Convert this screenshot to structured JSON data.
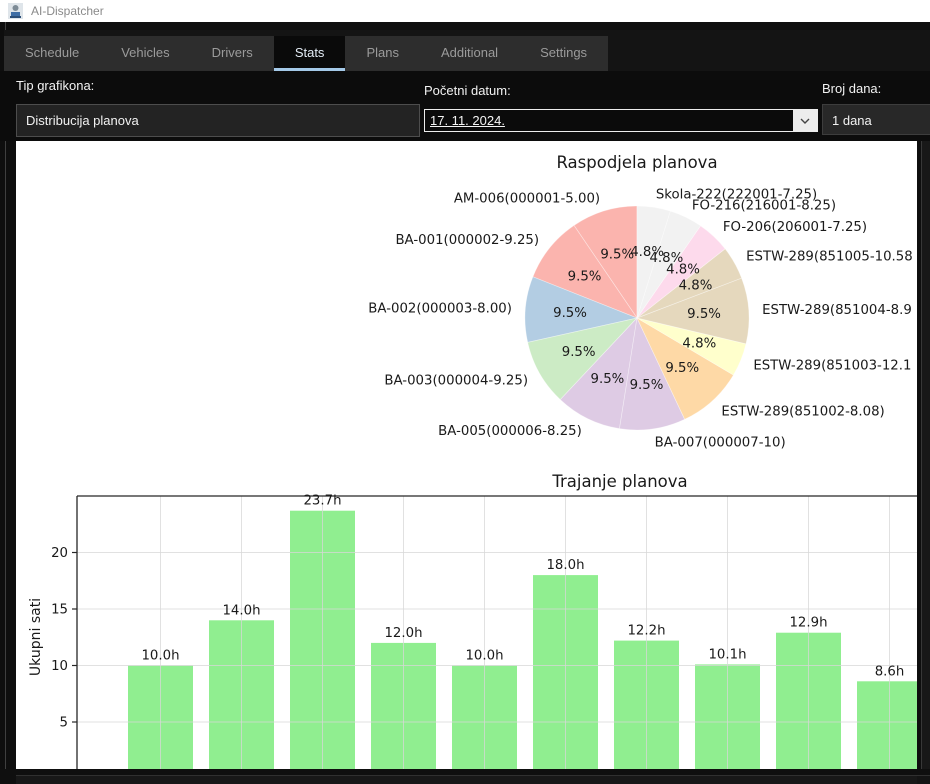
{
  "window": {
    "title": "AI-Dispatcher"
  },
  "tabs": [
    {
      "label": "Schedule",
      "active": false
    },
    {
      "label": "Vehicles",
      "active": false
    },
    {
      "label": "Drivers",
      "active": false
    },
    {
      "label": "Stats",
      "active": true
    },
    {
      "label": "Plans",
      "active": false
    },
    {
      "label": "Additional",
      "active": false
    },
    {
      "label": "Settings",
      "active": false
    }
  ],
  "filters": {
    "chart_type_label": "Tip grafikona:",
    "chart_type_value": "Distribucija planova",
    "start_date_label": "Početni datum:",
    "start_date_value": "17. 11. 2024.",
    "days_label": "Broj dana:",
    "days_value": "1 dana"
  },
  "icons": {
    "date_chevron": "chevron-down-icon"
  },
  "chart_data": [
    {
      "type": "pie",
      "title": "Raspodjela planova",
      "start_angle": 90,
      "direction": "counterclockwise",
      "slices": [
        {
          "label": "AM-006(000001-5.00)",
          "pct": 9.5,
          "pct_label": "9.5%",
          "color": "#fbb4ae"
        },
        {
          "label": "BA-001(000002-9.25)",
          "pct": 9.5,
          "pct_label": "9.5%",
          "color": "#fbb4ae"
        },
        {
          "label": "BA-002(000003-8.00)",
          "pct": 9.5,
          "pct_label": "9.5%",
          "color": "#b3cde3"
        },
        {
          "label": "BA-003(000004-9.25)",
          "pct": 9.5,
          "pct_label": "9.5%",
          "color": "#ccebc5"
        },
        {
          "label": "BA-005(000006-8.25)",
          "pct": 9.5,
          "pct_label": "9.5%",
          "color": "#decbe4"
        },
        {
          "label": "BA-007(000007-10)",
          "pct": 9.5,
          "pct_label": "9.5%",
          "color": "#decbe4"
        },
        {
          "label": "ESTW-289(851002-8.08)",
          "pct": 9.5,
          "pct_label": "9.5%",
          "color": "#fed9a6"
        },
        {
          "label": "ESTW-289(851003-12.1",
          "pct": 4.8,
          "pct_label": "4.8%",
          "color": "#ffffcc"
        },
        {
          "label": "ESTW-289(851004-8.9",
          "pct": 9.5,
          "pct_label": "9.5%",
          "color": "#e5d8bd"
        },
        {
          "label": "ESTW-289(851005-10.58",
          "pct": 4.8,
          "pct_label": "4.8%",
          "color": "#e5d8bd"
        },
        {
          "label": "FO-206(206001-7.25)",
          "pct": 4.8,
          "pct_label": "4.8%",
          "color": "#fddaec"
        },
        {
          "label": "FO-216(216001-8.25)",
          "pct": 4.8,
          "pct_label": "4.8%",
          "color": "#f2f2f2"
        },
        {
          "label": "Skola-222(222001-7.25)",
          "pct": 4.8,
          "pct_label": "4.8%",
          "color": "#f2f2f2"
        }
      ]
    },
    {
      "type": "bar",
      "title": "Trajanje planova",
      "ylabel": "Ukupni sati",
      "values": [
        10.0,
        14.0,
        23.7,
        12.0,
        10.0,
        18.0,
        12.2,
        10.1,
        12.9,
        8.6
      ],
      "value_labels": [
        "10.0h",
        "14.0h",
        "23.7h",
        "12.0h",
        "10.0h",
        "18.0h",
        "12.2h",
        "10.1h",
        "12.9h",
        "8.6h"
      ],
      "yticks": [
        5,
        10,
        15,
        20
      ],
      "ylim": [
        0,
        25
      ],
      "bar_color": "#90ee90",
      "grid": true
    }
  ]
}
